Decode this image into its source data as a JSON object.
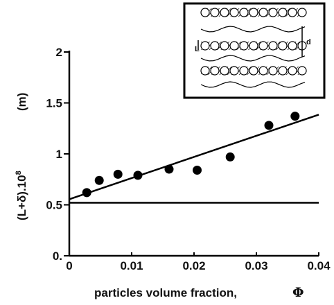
{
  "chart_data": {
    "type": "scatter",
    "xlabel": "particles volume fraction,",
    "xlabel_symbol": "Φ",
    "ylabel": "(L+δ).10",
    "ylabel_exponent": "8",
    "ylabel_unit": "(m)",
    "xlim": [
      0,
      0.04
    ],
    "ylim": [
      0,
      2
    ],
    "x_ticks": [
      0,
      0.01,
      0.02,
      0.03,
      0.04
    ],
    "x_tick_labels": [
      "0",
      "0.01",
      "0.02",
      "0.03",
      "0.04"
    ],
    "y_ticks": [
      0,
      0.5,
      1,
      1.5,
      2
    ],
    "y_tick_labels": [
      "0.",
      "0.5",
      "1",
      "1.5",
      "2"
    ],
    "points": [
      {
        "x": 0.0028,
        "y": 0.62
      },
      {
        "x": 0.0048,
        "y": 0.74
      },
      {
        "x": 0.0078,
        "y": 0.8
      },
      {
        "x": 0.011,
        "y": 0.79
      },
      {
        "x": 0.016,
        "y": 0.85
      },
      {
        "x": 0.0205,
        "y": 0.84
      },
      {
        "x": 0.0258,
        "y": 0.97
      },
      {
        "x": 0.032,
        "y": 1.28
      },
      {
        "x": 0.0362,
        "y": 1.37
      }
    ],
    "fit_line": {
      "x0": 0,
      "y0": 0.555,
      "x1": 0.04,
      "y1": 1.385
    },
    "baseline": {
      "y": 0.52
    },
    "grid": false,
    "legend": "none",
    "inset": {
      "labels": {
        "left": "L",
        "right": "d"
      }
    }
  }
}
